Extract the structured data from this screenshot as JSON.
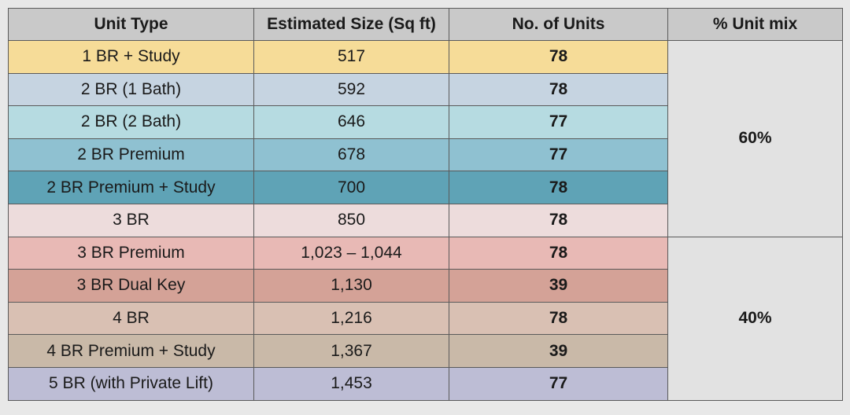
{
  "table": {
    "columns": [
      "Unit Type",
      "Estimated Size (Sq ft)",
      "No. of Units",
      "% Unit mix"
    ],
    "rows": [
      [
        "1 BR + Study",
        "517",
        "78",
        "60%"
      ],
      [
        "2 BR (1 Bath)",
        "592",
        "78",
        null
      ],
      [
        "2 BR (2 Bath)",
        "646",
        "77",
        null
      ],
      [
        "2 BR Premium",
        "678",
        "77",
        null
      ],
      [
        "2 BR Premium + Study",
        "700",
        "78",
        null
      ],
      [
        "3 BR",
        "850",
        "78",
        null
      ],
      [
        "3 BR Premium",
        "1,023 – 1,044",
        "78",
        "40%"
      ],
      [
        "3 BR Dual Key",
        "1,130",
        "39",
        null
      ],
      [
        "4 BR",
        "1,216",
        "78",
        null
      ],
      [
        "4 BR Premium + Study",
        "1,367",
        "39",
        null
      ],
      [
        "5 BR (with Private Lift)",
        "1,453",
        "77",
        null
      ]
    ]
  }
}
